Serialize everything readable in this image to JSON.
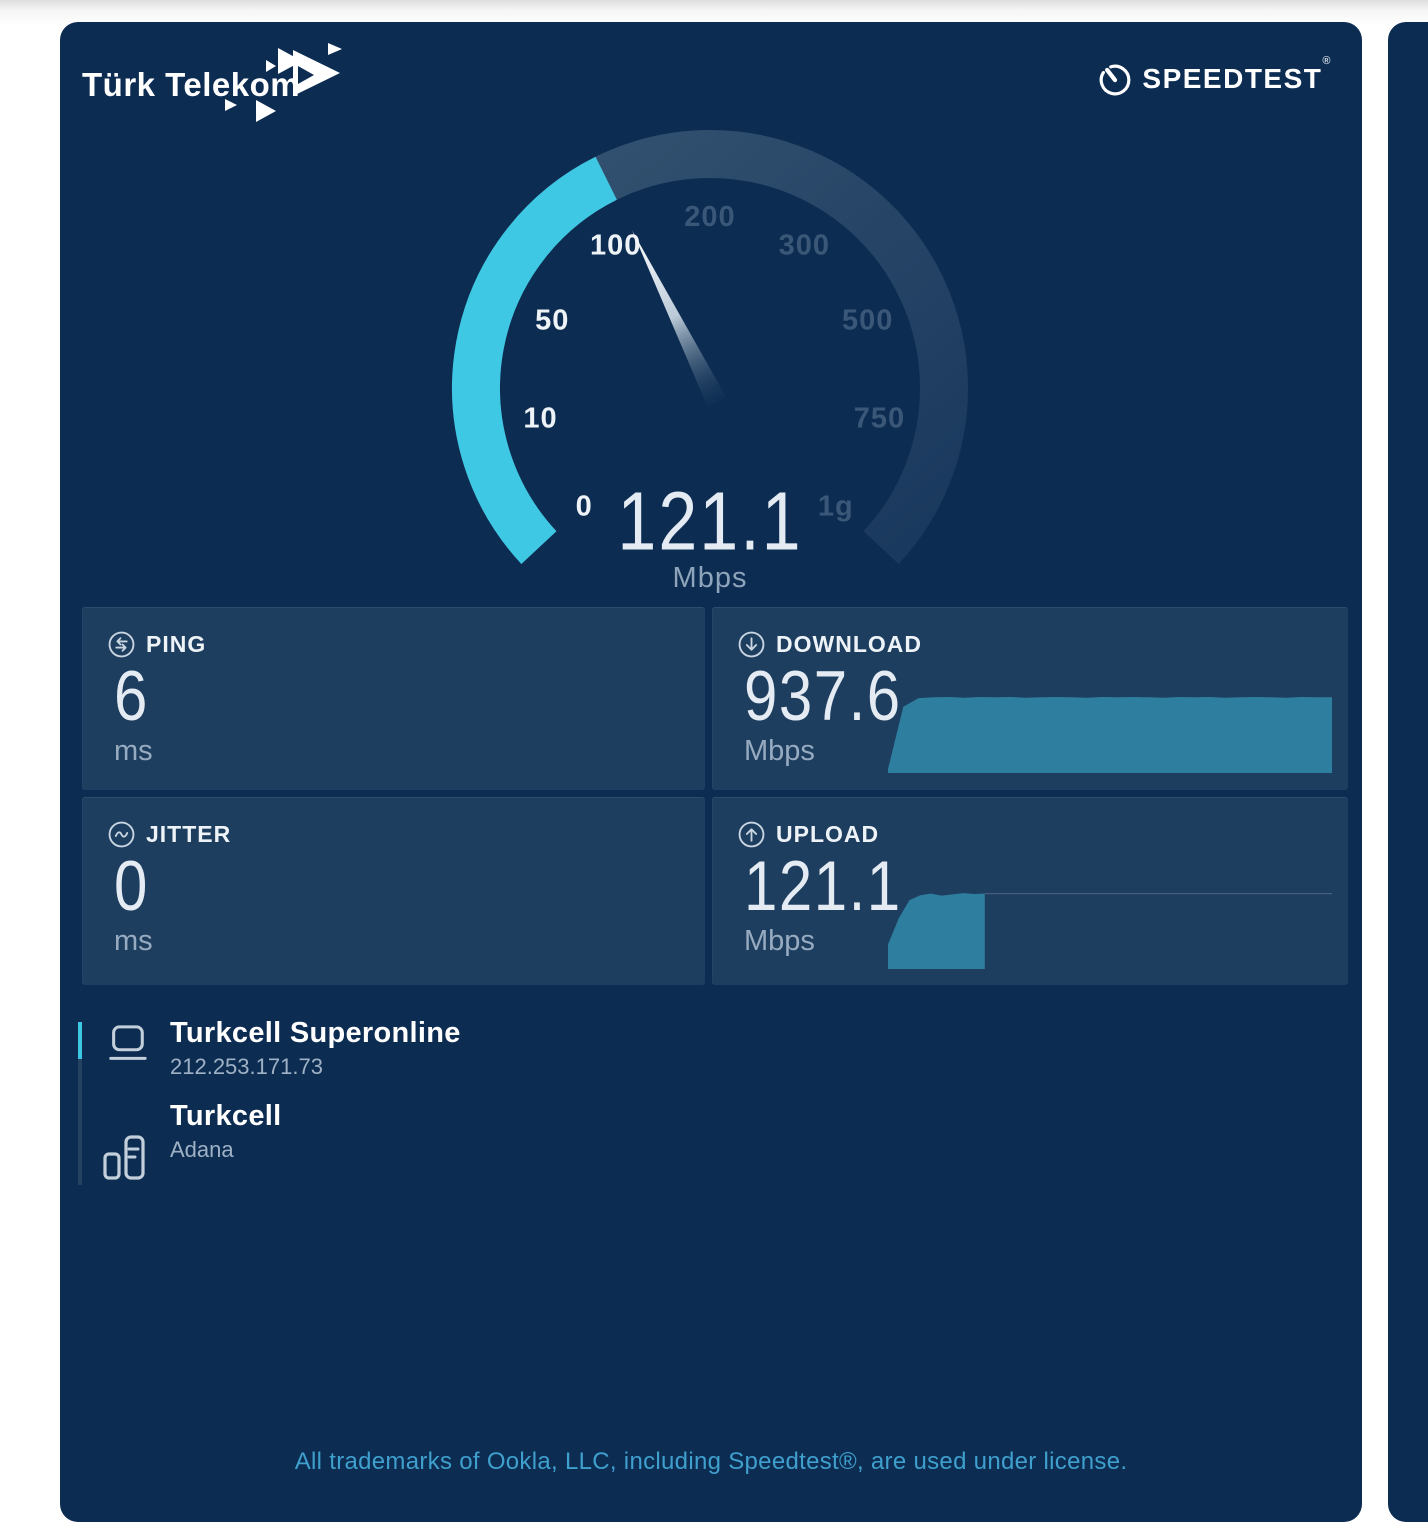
{
  "colors": {
    "accent": "#3fc8e4",
    "graph": "#2e7f9f",
    "card_bg": "#0c2c52",
    "panel_bg": "#1e3e60",
    "footer_text": "#3f9fcd",
    "tick_active": "#eef3f8",
    "tick_muted": "#3b5778"
  },
  "header": {
    "brand": "Türk Telekom",
    "speedtest": "SPEEDTEST",
    "speedtest_mark": "®"
  },
  "gauge": {
    "value": "121.1",
    "unit": "Mbps"
  },
  "metrics": {
    "ping": {
      "label": "PING",
      "value": "6",
      "unit": "ms"
    },
    "jitter": {
      "label": "JITTER",
      "value": "0",
      "unit": "ms"
    },
    "download": {
      "label": "DOWNLOAD",
      "value": "937.6",
      "unit": "Mbps"
    },
    "upload": {
      "label": "UPLOAD",
      "value": "121.1",
      "unit": "Mbps"
    }
  },
  "connection": {
    "isp": {
      "name": "Turkcell Superonline",
      "ip": "212.253.171.73"
    },
    "server": {
      "name": "Turkcell",
      "location": "Adana"
    }
  },
  "footer": {
    "license": "All trademarks of Ookla, LLC, including Speedtest®, are used under license."
  },
  "chart_data": [
    {
      "type": "gauge",
      "name": "speed-gauge",
      "title": "Current transfer speed",
      "value": 121.1,
      "unit": "Mbps",
      "tick_labels": [
        "0",
        "10",
        "50",
        "100",
        "200",
        "300",
        "500",
        "750",
        "1g"
      ],
      "scale_values": [
        0,
        10,
        50,
        100,
        200,
        300,
        500,
        750,
        1000
      ],
      "fraction": 0.401,
      "arc_sweep_deg": 266,
      "active_tick_count": 4
    },
    {
      "type": "area",
      "name": "download-throughput",
      "final_value": 937.6,
      "unit": "Mbps",
      "extent": 1,
      "values": [
        0.05,
        0.85,
        0.96,
        0.97,
        0.975,
        0.965,
        0.975,
        0.97,
        0.975,
        0.965,
        0.97,
        0.975,
        0.97,
        0.965,
        0.975,
        0.97,
        0.975,
        0.97,
        0.965,
        0.975,
        0.97,
        0.975,
        0.965,
        0.97,
        0.975,
        0.97,
        0.965,
        0.975,
        0.97,
        0.97
      ]
    },
    {
      "type": "area",
      "name": "upload-throughput",
      "final_value": 121.1,
      "unit": "Mbps",
      "extent": 0.218,
      "ref_level": 0.92,
      "values": [
        0.3,
        0.62,
        0.84,
        0.9,
        0.92,
        0.895,
        0.91,
        0.925,
        0.915,
        0.92
      ]
    }
  ]
}
